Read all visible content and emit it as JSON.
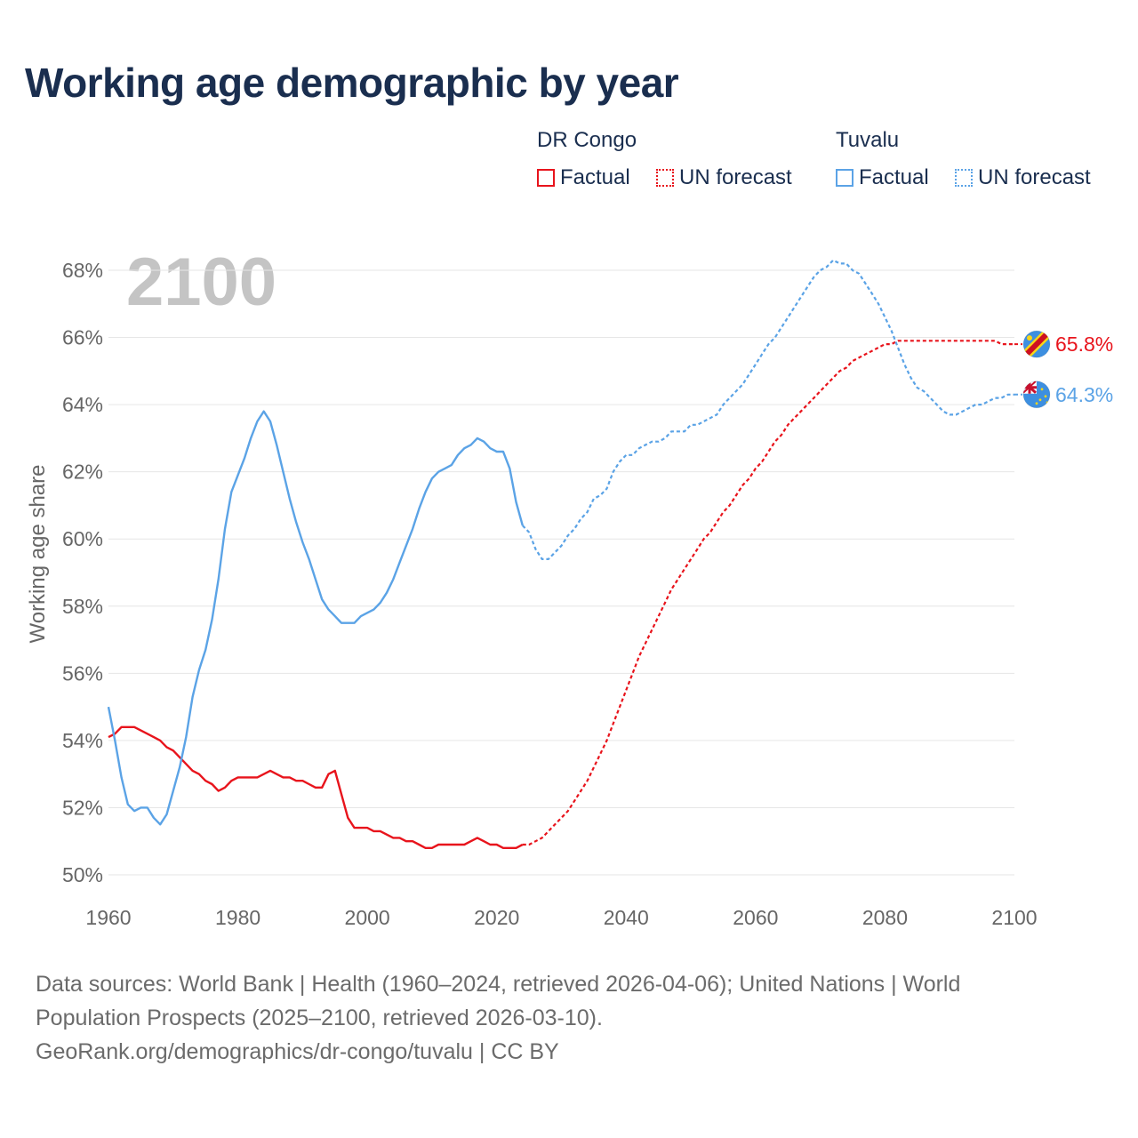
{
  "title": "Working age demographic by year",
  "legend": {
    "groups": [
      {
        "country": "DR Congo",
        "factual_label": "Factual",
        "forecast_label": "UN forecast",
        "color": "#e8141c"
      },
      {
        "country": "Tuvalu",
        "factual_label": "Factual",
        "forecast_label": "UN forecast",
        "color": "#5ba3e6"
      }
    ]
  },
  "year_overlay": "2100",
  "source_lines": [
    "Data sources: World Bank | Health (1960–2024, retrieved 2026-04-06); United Nations | World",
    "Population Prospects (2025–2100, retrieved 2026-03-10).",
    "GeoRank.org/demographics/dr-congo/tuvalu | CC BY"
  ],
  "chart_data": {
    "type": "line",
    "title": "Working age demographic by year",
    "xlabel": "",
    "ylabel": "Working age share",
    "xlim": [
      1960,
      2100
    ],
    "ylim": [
      50,
      68
    ],
    "x_ticks": [
      1960,
      1980,
      2000,
      2020,
      2040,
      2060,
      2080,
      2100
    ],
    "y_ticks": [
      50,
      52,
      54,
      56,
      58,
      60,
      62,
      64,
      66,
      68
    ],
    "y_tick_labels": [
      "50%",
      "52%",
      "54%",
      "56%",
      "58%",
      "60%",
      "62%",
      "64%",
      "66%",
      "68%"
    ],
    "grid": true,
    "factual_end_year": 2024,
    "series": [
      {
        "name": "DR Congo",
        "color": "#e8141c",
        "end_label": "65.8%",
        "points": [
          [
            1960,
            54.1
          ],
          [
            1961,
            54.2
          ],
          [
            1962,
            54.4
          ],
          [
            1963,
            54.4
          ],
          [
            1964,
            54.4
          ],
          [
            1965,
            54.3
          ],
          [
            1966,
            54.2
          ],
          [
            1967,
            54.1
          ],
          [
            1968,
            54.0
          ],
          [
            1969,
            53.8
          ],
          [
            1970,
            53.7
          ],
          [
            1971,
            53.5
          ],
          [
            1972,
            53.3
          ],
          [
            1973,
            53.1
          ],
          [
            1974,
            53.0
          ],
          [
            1975,
            52.8
          ],
          [
            1976,
            52.7
          ],
          [
            1977,
            52.5
          ],
          [
            1978,
            52.6
          ],
          [
            1979,
            52.8
          ],
          [
            1980,
            52.9
          ],
          [
            1981,
            52.9
          ],
          [
            1982,
            52.9
          ],
          [
            1983,
            52.9
          ],
          [
            1984,
            53.0
          ],
          [
            1985,
            53.1
          ],
          [
            1986,
            53.0
          ],
          [
            1987,
            52.9
          ],
          [
            1988,
            52.9
          ],
          [
            1989,
            52.8
          ],
          [
            1990,
            52.8
          ],
          [
            1991,
            52.7
          ],
          [
            1992,
            52.6
          ],
          [
            1993,
            52.6
          ],
          [
            1994,
            53.0
          ],
          [
            1995,
            53.1
          ],
          [
            1996,
            52.4
          ],
          [
            1997,
            51.7
          ],
          [
            1998,
            51.4
          ],
          [
            1999,
            51.4
          ],
          [
            2000,
            51.4
          ],
          [
            2001,
            51.3
          ],
          [
            2002,
            51.3
          ],
          [
            2003,
            51.2
          ],
          [
            2004,
            51.1
          ],
          [
            2005,
            51.1
          ],
          [
            2006,
            51.0
          ],
          [
            2007,
            51.0
          ],
          [
            2008,
            50.9
          ],
          [
            2009,
            50.8
          ],
          [
            2010,
            50.8
          ],
          [
            2011,
            50.9
          ],
          [
            2012,
            50.9
          ],
          [
            2013,
            50.9
          ],
          [
            2014,
            50.9
          ],
          [
            2015,
            50.9
          ],
          [
            2016,
            51.0
          ],
          [
            2017,
            51.1
          ],
          [
            2018,
            51.0
          ],
          [
            2019,
            50.9
          ],
          [
            2020,
            50.9
          ],
          [
            2021,
            50.8
          ],
          [
            2022,
            50.8
          ],
          [
            2023,
            50.8
          ],
          [
            2024,
            50.9
          ],
          [
            2025,
            50.9
          ],
          [
            2026,
            51.0
          ],
          [
            2027,
            51.1
          ],
          [
            2028,
            51.3
          ],
          [
            2029,
            51.5
          ],
          [
            2030,
            51.7
          ],
          [
            2031,
            51.9
          ],
          [
            2032,
            52.2
          ],
          [
            2033,
            52.5
          ],
          [
            2034,
            52.8
          ],
          [
            2035,
            53.2
          ],
          [
            2036,
            53.6
          ],
          [
            2037,
            54.0
          ],
          [
            2038,
            54.5
          ],
          [
            2039,
            55.0
          ],
          [
            2040,
            55.5
          ],
          [
            2041,
            56.0
          ],
          [
            2042,
            56.5
          ],
          [
            2043,
            56.9
          ],
          [
            2044,
            57.3
          ],
          [
            2045,
            57.7
          ],
          [
            2046,
            58.1
          ],
          [
            2047,
            58.5
          ],
          [
            2048,
            58.8
          ],
          [
            2049,
            59.1
          ],
          [
            2050,
            59.4
          ],
          [
            2051,
            59.7
          ],
          [
            2052,
            60.0
          ],
          [
            2053,
            60.2
          ],
          [
            2054,
            60.5
          ],
          [
            2055,
            60.8
          ],
          [
            2056,
            61.0
          ],
          [
            2057,
            61.3
          ],
          [
            2058,
            61.6
          ],
          [
            2059,
            61.8
          ],
          [
            2060,
            62.1
          ],
          [
            2061,
            62.3
          ],
          [
            2062,
            62.6
          ],
          [
            2063,
            62.9
          ],
          [
            2064,
            63.1
          ],
          [
            2065,
            63.4
          ],
          [
            2066,
            63.6
          ],
          [
            2067,
            63.8
          ],
          [
            2068,
            64.0
          ],
          [
            2069,
            64.2
          ],
          [
            2070,
            64.4
          ],
          [
            2071,
            64.6
          ],
          [
            2072,
            64.8
          ],
          [
            2073,
            65.0
          ],
          [
            2074,
            65.1
          ],
          [
            2075,
            65.3
          ],
          [
            2076,
            65.4
          ],
          [
            2077,
            65.5
          ],
          [
            2078,
            65.6
          ],
          [
            2079,
            65.7
          ],
          [
            2080,
            65.8
          ],
          [
            2081,
            65.8
          ],
          [
            2082,
            65.9
          ],
          [
            2083,
            65.9
          ],
          [
            2084,
            65.9
          ],
          [
            2085,
            65.9
          ],
          [
            2086,
            65.9
          ],
          [
            2087,
            65.9
          ],
          [
            2088,
            65.9
          ],
          [
            2089,
            65.9
          ],
          [
            2090,
            65.9
          ],
          [
            2091,
            65.9
          ],
          [
            2092,
            65.9
          ],
          [
            2093,
            65.9
          ],
          [
            2094,
            65.9
          ],
          [
            2095,
            65.9
          ],
          [
            2096,
            65.9
          ],
          [
            2097,
            65.9
          ],
          [
            2098,
            65.8
          ],
          [
            2099,
            65.8
          ],
          [
            2100,
            65.8
          ]
        ]
      },
      {
        "name": "Tuvalu",
        "color": "#5ba3e6",
        "end_label": "64.3%",
        "points": [
          [
            1960,
            55.0
          ],
          [
            1961,
            54.0
          ],
          [
            1962,
            52.9
          ],
          [
            1963,
            52.1
          ],
          [
            1964,
            51.9
          ],
          [
            1965,
            52.0
          ],
          [
            1966,
            52.0
          ],
          [
            1967,
            51.7
          ],
          [
            1968,
            51.5
          ],
          [
            1969,
            51.8
          ],
          [
            1970,
            52.5
          ],
          [
            1971,
            53.2
          ],
          [
            1972,
            54.1
          ],
          [
            1973,
            55.3
          ],
          [
            1974,
            56.1
          ],
          [
            1975,
            56.7
          ],
          [
            1976,
            57.6
          ],
          [
            1977,
            58.8
          ],
          [
            1978,
            60.3
          ],
          [
            1979,
            61.4
          ],
          [
            1980,
            61.9
          ],
          [
            1981,
            62.4
          ],
          [
            1982,
            63.0
          ],
          [
            1983,
            63.5
          ],
          [
            1984,
            63.8
          ],
          [
            1985,
            63.5
          ],
          [
            1986,
            62.8
          ],
          [
            1987,
            62.0
          ],
          [
            1988,
            61.2
          ],
          [
            1989,
            60.5
          ],
          [
            1990,
            59.9
          ],
          [
            1991,
            59.4
          ],
          [
            1992,
            58.8
          ],
          [
            1993,
            58.2
          ],
          [
            1994,
            57.9
          ],
          [
            1995,
            57.7
          ],
          [
            1996,
            57.5
          ],
          [
            1997,
            57.5
          ],
          [
            1998,
            57.5
          ],
          [
            1999,
            57.7
          ],
          [
            2000,
            57.8
          ],
          [
            2001,
            57.9
          ],
          [
            2002,
            58.1
          ],
          [
            2003,
            58.4
          ],
          [
            2004,
            58.8
          ],
          [
            2005,
            59.3
          ],
          [
            2006,
            59.8
          ],
          [
            2007,
            60.3
          ],
          [
            2008,
            60.9
          ],
          [
            2009,
            61.4
          ],
          [
            2010,
            61.8
          ],
          [
            2011,
            62.0
          ],
          [
            2012,
            62.1
          ],
          [
            2013,
            62.2
          ],
          [
            2014,
            62.5
          ],
          [
            2015,
            62.7
          ],
          [
            2016,
            62.8
          ],
          [
            2017,
            63.0
          ],
          [
            2018,
            62.9
          ],
          [
            2019,
            62.7
          ],
          [
            2020,
            62.6
          ],
          [
            2021,
            62.6
          ],
          [
            2022,
            62.1
          ],
          [
            2023,
            61.1
          ],
          [
            2024,
            60.4
          ],
          [
            2025,
            60.2
          ],
          [
            2026,
            59.7
          ],
          [
            2027,
            59.4
          ],
          [
            2028,
            59.4
          ],
          [
            2029,
            59.6
          ],
          [
            2030,
            59.8
          ],
          [
            2031,
            60.1
          ],
          [
            2032,
            60.3
          ],
          [
            2033,
            60.6
          ],
          [
            2034,
            60.8
          ],
          [
            2035,
            61.2
          ],
          [
            2036,
            61.3
          ],
          [
            2037,
            61.5
          ],
          [
            2038,
            62.0
          ],
          [
            2039,
            62.3
          ],
          [
            2040,
            62.5
          ],
          [
            2041,
            62.5
          ],
          [
            2042,
            62.7
          ],
          [
            2043,
            62.8
          ],
          [
            2044,
            62.9
          ],
          [
            2045,
            62.9
          ],
          [
            2046,
            63.0
          ],
          [
            2047,
            63.2
          ],
          [
            2048,
            63.2
          ],
          [
            2049,
            63.2
          ],
          [
            2050,
            63.4
          ],
          [
            2051,
            63.4
          ],
          [
            2052,
            63.5
          ],
          [
            2053,
            63.6
          ],
          [
            2054,
            63.7
          ],
          [
            2055,
            64.0
          ],
          [
            2056,
            64.2
          ],
          [
            2057,
            64.4
          ],
          [
            2058,
            64.6
          ],
          [
            2059,
            64.9
          ],
          [
            2060,
            65.2
          ],
          [
            2061,
            65.5
          ],
          [
            2062,
            65.8
          ],
          [
            2063,
            66.0
          ],
          [
            2064,
            66.3
          ],
          [
            2065,
            66.6
          ],
          [
            2066,
            66.9
          ],
          [
            2067,
            67.2
          ],
          [
            2068,
            67.5
          ],
          [
            2069,
            67.8
          ],
          [
            2070,
            68.0
          ],
          [
            2071,
            68.1
          ],
          [
            2072,
            68.3
          ],
          [
            2073,
            68.2
          ],
          [
            2074,
            68.2
          ],
          [
            2075,
            68.0
          ],
          [
            2076,
            67.9
          ],
          [
            2077,
            67.6
          ],
          [
            2078,
            67.3
          ],
          [
            2079,
            67.0
          ],
          [
            2080,
            66.6
          ],
          [
            2081,
            66.2
          ],
          [
            2082,
            65.7
          ],
          [
            2083,
            65.2
          ],
          [
            2084,
            64.8
          ],
          [
            2085,
            64.5
          ],
          [
            2086,
            64.4
          ],
          [
            2087,
            64.2
          ],
          [
            2088,
            64.0
          ],
          [
            2089,
            63.8
          ],
          [
            2090,
            63.7
          ],
          [
            2091,
            63.7
          ],
          [
            2092,
            63.8
          ],
          [
            2093,
            63.9
          ],
          [
            2094,
            64.0
          ],
          [
            2095,
            64.0
          ],
          [
            2096,
            64.1
          ],
          [
            2097,
            64.2
          ],
          [
            2098,
            64.2
          ],
          [
            2099,
            64.3
          ],
          [
            2100,
            64.3
          ]
        ]
      }
    ]
  }
}
